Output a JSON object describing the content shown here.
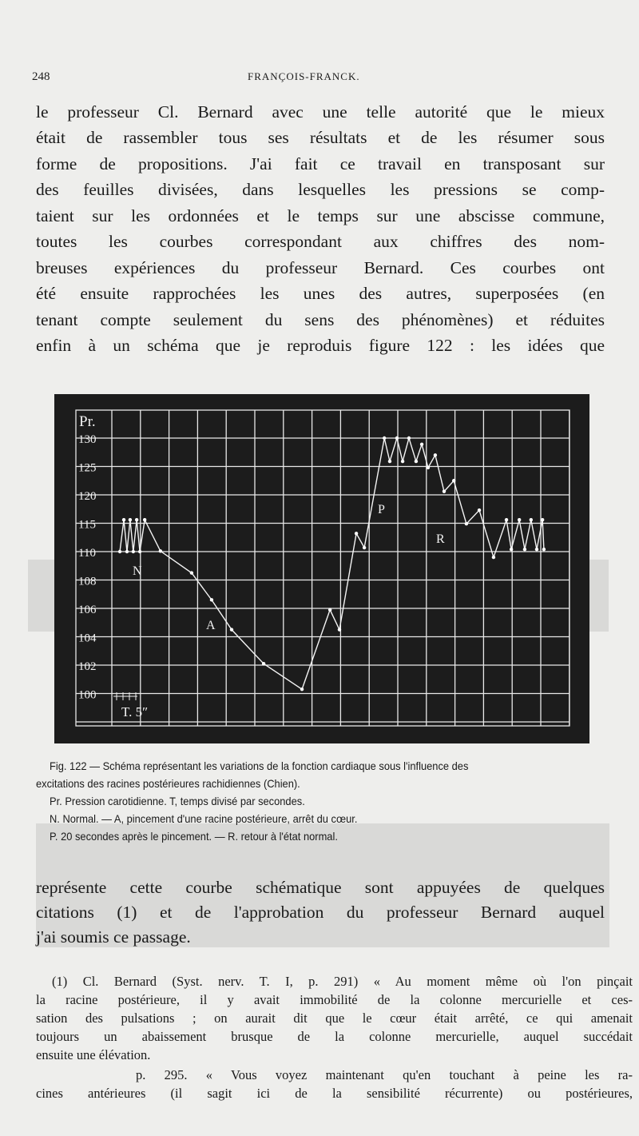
{
  "header": {
    "page_number": "248",
    "running_title": "FRANÇOIS-FRANCK."
  },
  "paragraph1": [
    "le professeur Cl. Bernard avec une telle autorité que le mieux",
    "était de rassembler tous ses résultats et de les résumer sous",
    "forme de propositions. J'ai fait ce travail en transposant sur",
    "des feuilles divisées, dans lesquelles les pressions se comp-",
    "taient sur les ordonnées et le temps sur une abscisse commune,",
    "toutes les courbes correspondant aux chiffres des nom-",
    "breuses expériences du professeur Bernard. Ces courbes ont",
    "été ensuite rapprochées les unes des autres, superposées (en",
    "tenant compte seulement du sens des phénomènes) et réduites",
    "enfin à un schéma que je reproduis figure 122 : les idées que"
  ],
  "figure": {
    "axis_title": "Pr.",
    "y_labels": [
      "130",
      "125",
      "120",
      "115",
      "110",
      "108",
      "106",
      "104",
      "102",
      "100"
    ],
    "time_label": "T.  5″",
    "phase_labels": {
      "N": "N",
      "A": "A",
      "P": "P",
      "R": "R"
    },
    "curve_points": [
      [
        0.28,
        110
      ],
      [
        0.42,
        115.6
      ],
      [
        0.53,
        110
      ],
      [
        0.64,
        115.6
      ],
      [
        0.75,
        110
      ],
      [
        0.87,
        115.6
      ],
      [
        0.98,
        110
      ],
      [
        1.15,
        115.6
      ],
      [
        1.7,
        110.1
      ],
      [
        2.79,
        108.5
      ],
      [
        3.49,
        106.6
      ],
      [
        4.19,
        104.5
      ],
      [
        5.31,
        102.1
      ],
      [
        6.65,
        100.3
      ],
      [
        7.63,
        105.9
      ],
      [
        7.96,
        104.5
      ],
      [
        8.55,
        113.2
      ],
      [
        8.83,
        110.7
      ],
      [
        9.53,
        130
      ],
      [
        9.72,
        125.9
      ],
      [
        9.97,
        130
      ],
      [
        10.17,
        125.9
      ],
      [
        10.39,
        130
      ],
      [
        10.64,
        125.9
      ],
      [
        10.84,
        128.9
      ],
      [
        11.06,
        124.8
      ],
      [
        11.31,
        127
      ],
      [
        11.62,
        120.6
      ],
      [
        11.96,
        122.5
      ],
      [
        12.4,
        114.9
      ],
      [
        12.85,
        117.3
      ],
      [
        13.35,
        109.6
      ],
      [
        13.8,
        115.6
      ],
      [
        13.97,
        110.4
      ],
      [
        14.25,
        115.6
      ],
      [
        14.44,
        110.4
      ],
      [
        14.66,
        115.6
      ],
      [
        14.86,
        110.4
      ],
      [
        15.06,
        115.6
      ],
      [
        15.11,
        110.4
      ]
    ],
    "colors": {
      "background": "#1c1c1c",
      "lines": "#f2f2f2"
    }
  },
  "caption": [
    "Fig. 122 — Schéma représentant les variations de la fonction cardiaque sous l'influence des",
    "excitations des racines postérieures rachidiennes (Chien).",
    "Pr. Pression carotidienne. T, temps divisé par secondes.",
    "N. Normal. — A, pincement d'une racine postérieure, arrêt du cœur.",
    "P. 20 secondes après le pincement. — R. retour à l'état normal."
  ],
  "paragraph2": [
    "représente cette courbe schématique sont appuyées de quelques",
    "citations (1) et de l'approbation du professeur Bernard auquel",
    "j'ai soumis ce passage."
  ],
  "footnotes": [
    "(1) Cl. Bernard (Syst. nerv. T. I, p. 291) « Au moment même où l'on pinçait",
    "la racine postérieure, il y avait immobilité de la colonne mercurielle et ces-",
    "sation des pulsations ; on aurait dit que le cœur était arrêté, ce qui amenait",
    "toujours un abaissement brusque de la colonne mercurielle, auquel succédait",
    "ensuite une élévation.",
    "p. 295. « Vous voyez maintenant qu'en touchant à peine les ra-",
    "cines antérieures (il sagit ici de la sensibilité récurrente) ou postérieures,"
  ]
}
